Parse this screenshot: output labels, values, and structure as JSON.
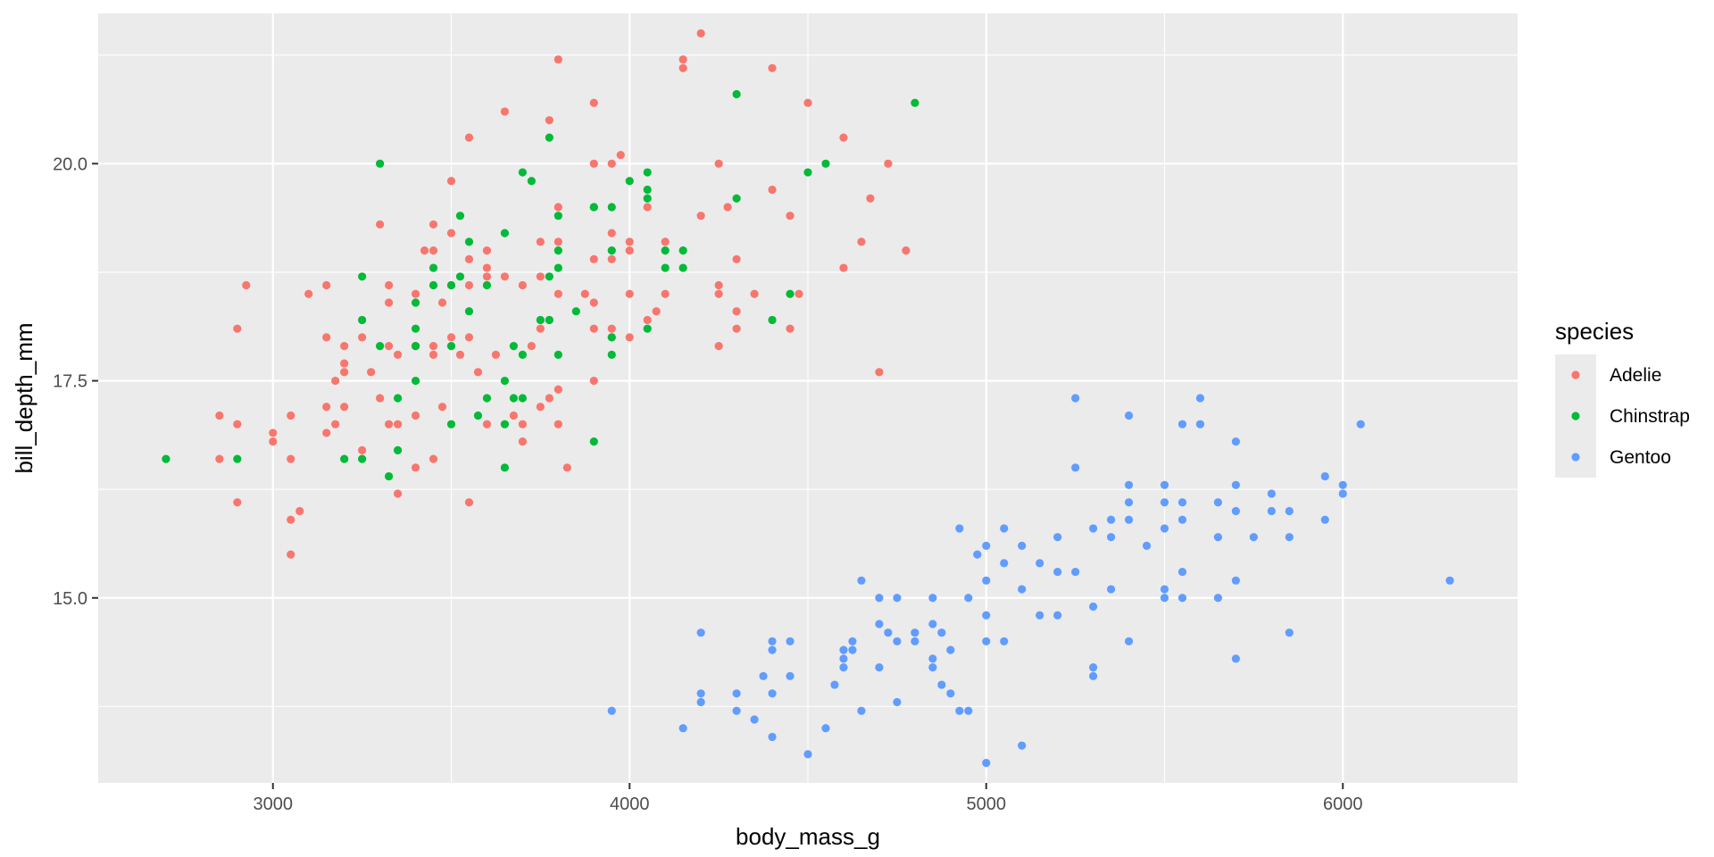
{
  "chart_data": {
    "type": "scatter",
    "xlabel": "body_mass_g",
    "ylabel": "bill_depth_mm",
    "xlim": [
      2510,
      6490
    ],
    "ylim": [
      12.87,
      21.73
    ],
    "x_ticks": [
      3000,
      4000,
      5000,
      6000
    ],
    "x_tick_labels": [
      "3000",
      "4000",
      "5000",
      "6000"
    ],
    "y_ticks": [
      15.0,
      17.5,
      20.0
    ],
    "y_tick_labels": [
      "15.0",
      "17.5",
      "20.0"
    ],
    "grid": true,
    "legend": {
      "title": "species",
      "position": "right"
    },
    "series": [
      {
        "name": "Adelie",
        "color": "#F8766D",
        "points": [
          [
            2850,
            17.1
          ],
          [
            2850,
            16.6
          ],
          [
            2900,
            18.1
          ],
          [
            2900,
            17.0
          ],
          [
            2900,
            16.1
          ],
          [
            2925,
            18.6
          ],
          [
            3000,
            16.9
          ],
          [
            3000,
            16.8
          ],
          [
            3050,
            17.1
          ],
          [
            3050,
            16.6
          ],
          [
            3050,
            15.9
          ],
          [
            3050,
            15.5
          ],
          [
            3075,
            16.0
          ],
          [
            3100,
            18.5
          ],
          [
            3150,
            18.6
          ],
          [
            3150,
            18.0
          ],
          [
            3150,
            17.2
          ],
          [
            3150,
            16.9
          ],
          [
            3175,
            17.5
          ],
          [
            3175,
            17.0
          ],
          [
            3200,
            17.9
          ],
          [
            3200,
            17.7
          ],
          [
            3200,
            17.6
          ],
          [
            3200,
            17.2
          ],
          [
            3250,
            18.0
          ],
          [
            3250,
            16.7
          ],
          [
            3275,
            17.6
          ],
          [
            3300,
            19.3
          ],
          [
            3300,
            17.3
          ],
          [
            3325,
            18.6
          ],
          [
            3325,
            18.4
          ],
          [
            3325,
            17.9
          ],
          [
            3325,
            17.0
          ],
          [
            3350,
            17.8
          ],
          [
            3350,
            17.0
          ],
          [
            3350,
            16.2
          ],
          [
            3400,
            18.5
          ],
          [
            3400,
            17.9
          ],
          [
            3400,
            17.1
          ],
          [
            3400,
            16.5
          ],
          [
            3425,
            19.0
          ],
          [
            3450,
            19.3
          ],
          [
            3450,
            19.0
          ],
          [
            3450,
            17.9
          ],
          [
            3450,
            17.8
          ],
          [
            3450,
            16.6
          ],
          [
            3475,
            18.4
          ],
          [
            3475,
            17.2
          ],
          [
            3500,
            19.8
          ],
          [
            3500,
            19.2
          ],
          [
            3500,
            18.6
          ],
          [
            3500,
            18.0
          ],
          [
            3525,
            17.8
          ],
          [
            3550,
            20.3
          ],
          [
            3550,
            18.9
          ],
          [
            3550,
            18.6
          ],
          [
            3550,
            18.0
          ],
          [
            3550,
            16.1
          ],
          [
            3575,
            17.6
          ],
          [
            3600,
            19.0
          ],
          [
            3600,
            18.8
          ],
          [
            3600,
            18.7
          ],
          [
            3600,
            17.0
          ],
          [
            3625,
            17.8
          ],
          [
            3650,
            20.6
          ],
          [
            3650,
            18.7
          ],
          [
            3675,
            17.1
          ],
          [
            3700,
            18.6
          ],
          [
            3700,
            17.0
          ],
          [
            3700,
            16.8
          ],
          [
            3725,
            17.9
          ],
          [
            3750,
            19.1
          ],
          [
            3750,
            18.7
          ],
          [
            3750,
            18.1
          ],
          [
            3750,
            17.2
          ],
          [
            3775,
            20.5
          ],
          [
            3775,
            17.3
          ],
          [
            3800,
            21.2
          ],
          [
            3800,
            19.5
          ],
          [
            3800,
            19.1
          ],
          [
            3800,
            18.5
          ],
          [
            3800,
            17.4
          ],
          [
            3800,
            17.0
          ],
          [
            3825,
            16.5
          ],
          [
            3875,
            18.5
          ],
          [
            3900,
            20.7
          ],
          [
            3900,
            20.0
          ],
          [
            3900,
            18.9
          ],
          [
            3900,
            18.4
          ],
          [
            3900,
            18.1
          ],
          [
            3900,
            17.5
          ],
          [
            3950,
            20.0
          ],
          [
            3950,
            19.2
          ],
          [
            3950,
            18.9
          ],
          [
            3950,
            18.1
          ],
          [
            3950,
            18.0
          ],
          [
            3975,
            20.1
          ],
          [
            4000,
            19.1
          ],
          [
            4000,
            19.0
          ],
          [
            4000,
            18.5
          ],
          [
            4000,
            18.0
          ],
          [
            4050,
            19.5
          ],
          [
            4050,
            18.2
          ],
          [
            4075,
            18.3
          ],
          [
            4100,
            19.1
          ],
          [
            4100,
            18.5
          ],
          [
            4150,
            21.2
          ],
          [
            4150,
            21.1
          ],
          [
            4200,
            21.5
          ],
          [
            4200,
            19.4
          ],
          [
            4250,
            20.0
          ],
          [
            4250,
            18.6
          ],
          [
            4250,
            18.5
          ],
          [
            4250,
            17.9
          ],
          [
            4275,
            19.5
          ],
          [
            4300,
            18.9
          ],
          [
            4300,
            18.3
          ],
          [
            4300,
            18.1
          ],
          [
            4350,
            18.5
          ],
          [
            4400,
            21.1
          ],
          [
            4400,
            19.7
          ],
          [
            4450,
            19.4
          ],
          [
            4450,
            18.1
          ],
          [
            4475,
            18.5
          ],
          [
            4500,
            20.7
          ],
          [
            4600,
            20.3
          ],
          [
            4600,
            18.8
          ],
          [
            4650,
            19.1
          ],
          [
            4675,
            19.6
          ],
          [
            4700,
            17.6
          ],
          [
            4725,
            20.0
          ],
          [
            4775,
            19.0
          ]
        ]
      },
      {
        "name": "Chinstrap",
        "color": "#00BA38",
        "points": [
          [
            2700,
            16.6
          ],
          [
            2900,
            16.6
          ],
          [
            3200,
            16.6
          ],
          [
            3250,
            18.7
          ],
          [
            3250,
            18.2
          ],
          [
            3250,
            16.6
          ],
          [
            3300,
            20.0
          ],
          [
            3300,
            17.9
          ],
          [
            3325,
            16.4
          ],
          [
            3350,
            17.3
          ],
          [
            3350,
            16.7
          ],
          [
            3400,
            18.4
          ],
          [
            3400,
            18.1
          ],
          [
            3400,
            17.9
          ],
          [
            3400,
            17.5
          ],
          [
            3450,
            18.8
          ],
          [
            3450,
            18.6
          ],
          [
            3500,
            18.6
          ],
          [
            3500,
            17.9
          ],
          [
            3500,
            17.0
          ],
          [
            3525,
            19.4
          ],
          [
            3525,
            18.7
          ],
          [
            3550,
            19.1
          ],
          [
            3550,
            18.3
          ],
          [
            3575,
            17.1
          ],
          [
            3600,
            18.6
          ],
          [
            3600,
            17.3
          ],
          [
            3650,
            19.2
          ],
          [
            3650,
            17.5
          ],
          [
            3650,
            17.0
          ],
          [
            3650,
            16.5
          ],
          [
            3675,
            17.3
          ],
          [
            3675,
            17.9
          ],
          [
            3700,
            19.9
          ],
          [
            3700,
            17.8
          ],
          [
            3700,
            17.3
          ],
          [
            3725,
            19.8
          ],
          [
            3775,
            20.3
          ],
          [
            3775,
            18.7
          ],
          [
            3775,
            18.2
          ],
          [
            3750,
            18.2
          ],
          [
            3800,
            19.4
          ],
          [
            3800,
            19.0
          ],
          [
            3800,
            18.8
          ],
          [
            3800,
            17.8
          ],
          [
            3850,
            18.3
          ],
          [
            3900,
            19.5
          ],
          [
            3900,
            19.5
          ],
          [
            3900,
            16.8
          ],
          [
            3950,
            19.5
          ],
          [
            3950,
            19.0
          ],
          [
            3950,
            18.0
          ],
          [
            3950,
            17.8
          ],
          [
            4000,
            19.8
          ],
          [
            4050,
            19.9
          ],
          [
            4050,
            19.7
          ],
          [
            4050,
            19.6
          ],
          [
            4050,
            18.1
          ],
          [
            4100,
            19.0
          ],
          [
            4100,
            18.8
          ],
          [
            4150,
            19.0
          ],
          [
            4150,
            18.8
          ],
          [
            4300,
            20.8
          ],
          [
            4300,
            19.6
          ],
          [
            4400,
            18.2
          ],
          [
            4450,
            18.5
          ],
          [
            4500,
            19.9
          ],
          [
            4550,
            20.0
          ],
          [
            4800,
            20.7
          ]
        ]
      },
      {
        "name": "Gentoo",
        "color": "#619CFF",
        "points": [
          [
            3950,
            13.7
          ],
          [
            4150,
            13.5
          ],
          [
            4200,
            14.6
          ],
          [
            4200,
            13.9
          ],
          [
            4200,
            13.8
          ],
          [
            4300,
            13.9
          ],
          [
            4300,
            13.7
          ],
          [
            4350,
            13.6
          ],
          [
            4375,
            14.1
          ],
          [
            4400,
            14.5
          ],
          [
            4400,
            14.4
          ],
          [
            4400,
            13.9
          ],
          [
            4400,
            13.4
          ],
          [
            4450,
            14.5
          ],
          [
            4450,
            14.1
          ],
          [
            4500,
            13.2
          ],
          [
            4550,
            13.5
          ],
          [
            4575,
            14.0
          ],
          [
            4600,
            14.4
          ],
          [
            4600,
            14.3
          ],
          [
            4600,
            14.2
          ],
          [
            4625,
            14.5
          ],
          [
            4625,
            14.4
          ],
          [
            4650,
            15.2
          ],
          [
            4650,
            13.7
          ],
          [
            4700,
            15.0
          ],
          [
            4700,
            14.7
          ],
          [
            4700,
            14.2
          ],
          [
            4725,
            14.6
          ],
          [
            4750,
            15.0
          ],
          [
            4750,
            14.5
          ],
          [
            4750,
            13.8
          ],
          [
            4800,
            14.6
          ],
          [
            4800,
            14.5
          ],
          [
            4850,
            15.0
          ],
          [
            4850,
            14.7
          ],
          [
            4850,
            14.3
          ],
          [
            4850,
            14.2
          ],
          [
            4875,
            14.6
          ],
          [
            4875,
            14.0
          ],
          [
            4900,
            14.4
          ],
          [
            4900,
            13.9
          ],
          [
            4925,
            15.8
          ],
          [
            4925,
            13.7
          ],
          [
            4950,
            15.0
          ],
          [
            4950,
            13.7
          ],
          [
            4975,
            15.5
          ],
          [
            5000,
            15.6
          ],
          [
            5000,
            15.2
          ],
          [
            5000,
            14.8
          ],
          [
            5000,
            14.5
          ],
          [
            5000,
            13.1
          ],
          [
            5050,
            15.8
          ],
          [
            5050,
            15.4
          ],
          [
            5050,
            14.5
          ],
          [
            5100,
            15.6
          ],
          [
            5100,
            15.1
          ],
          [
            5100,
            13.3
          ],
          [
            5150,
            15.4
          ],
          [
            5150,
            14.8
          ],
          [
            5200,
            15.7
          ],
          [
            5200,
            15.3
          ],
          [
            5200,
            14.8
          ],
          [
            5250,
            17.3
          ],
          [
            5250,
            16.5
          ],
          [
            5250,
            15.3
          ],
          [
            5300,
            15.8
          ],
          [
            5300,
            14.9
          ],
          [
            5300,
            14.2
          ],
          [
            5300,
            14.1
          ],
          [
            5350,
            15.9
          ],
          [
            5350,
            15.7
          ],
          [
            5350,
            15.1
          ],
          [
            5400,
            17.1
          ],
          [
            5400,
            16.3
          ],
          [
            5400,
            16.1
          ],
          [
            5400,
            15.9
          ],
          [
            5400,
            14.5
          ],
          [
            5450,
            15.6
          ],
          [
            5500,
            16.3
          ],
          [
            5500,
            16.1
          ],
          [
            5500,
            15.8
          ],
          [
            5500,
            15.1
          ],
          [
            5500,
            15.0
          ],
          [
            5550,
            17.0
          ],
          [
            5550,
            16.1
          ],
          [
            5550,
            15.9
          ],
          [
            5550,
            15.3
          ],
          [
            5550,
            15.0
          ],
          [
            5600,
            17.3
          ],
          [
            5600,
            17.0
          ],
          [
            5650,
            16.1
          ],
          [
            5650,
            15.7
          ],
          [
            5650,
            15.0
          ],
          [
            5700,
            16.8
          ],
          [
            5700,
            16.3
          ],
          [
            5700,
            16.0
          ],
          [
            5700,
            15.2
          ],
          [
            5700,
            14.3
          ],
          [
            5750,
            15.7
          ],
          [
            5800,
            16.2
          ],
          [
            5800,
            16.0
          ],
          [
            5850,
            16.0
          ],
          [
            5850,
            15.7
          ],
          [
            5850,
            14.6
          ],
          [
            5950,
            16.4
          ],
          [
            5950,
            15.9
          ],
          [
            6000,
            16.3
          ],
          [
            6000,
            16.2
          ],
          [
            6050,
            17.0
          ],
          [
            6300,
            15.2
          ]
        ]
      }
    ]
  }
}
